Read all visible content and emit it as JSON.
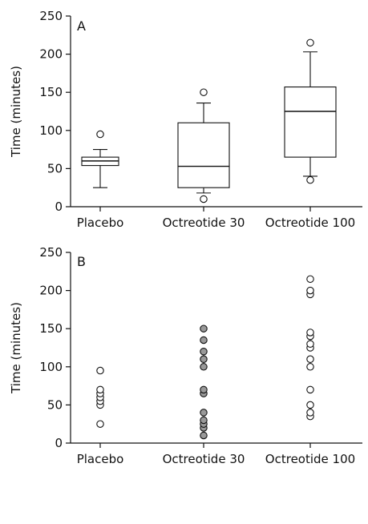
{
  "chart_data": [
    {
      "type": "box",
      "panel_label": "A",
      "ylabel": "Time (minutes)",
      "ylim": [
        0,
        250
      ],
      "yticks": [
        0,
        50,
        100,
        150,
        200,
        250
      ],
      "categories": [
        "Placebo",
        "Octreotide 30",
        "Octreotide 100"
      ],
      "boxes": [
        {
          "whisker_low": 25,
          "q1": 54,
          "median": 60,
          "q3": 65,
          "whisker_high": 75,
          "outliers": [
            95
          ]
        },
        {
          "whisker_low": 18,
          "q1": 25,
          "median": 53,
          "q3": 110,
          "whisker_high": 136,
          "outliers": [
            10,
            150
          ]
        },
        {
          "whisker_low": 40,
          "q1": 65,
          "median": 125,
          "q3": 157,
          "whisker_high": 203,
          "outliers": [
            35,
            215
          ]
        }
      ]
    },
    {
      "type": "scatter",
      "panel_label": "B",
      "ylabel": "Time (minutes)",
      "ylim": [
        0,
        250
      ],
      "yticks": [
        0,
        50,
        100,
        150,
        200,
        250
      ],
      "categories": [
        "Placebo",
        "Octreotide 30",
        "Octreotide 100"
      ],
      "series": [
        {
          "marker_fill": "#ffffff",
          "values": [
            25,
            50,
            55,
            60,
            65,
            70,
            95
          ]
        },
        {
          "marker_fill": "#999999",
          "values": [
            10,
            20,
            25,
            30,
            40,
            65,
            70,
            100,
            110,
            120,
            135,
            150
          ]
        },
        {
          "marker_fill": "#ffffff",
          "values": [
            35,
            40,
            50,
            70,
            100,
            110,
            125,
            130,
            140,
            145,
            195,
            200,
            215
          ]
        }
      ]
    }
  ]
}
